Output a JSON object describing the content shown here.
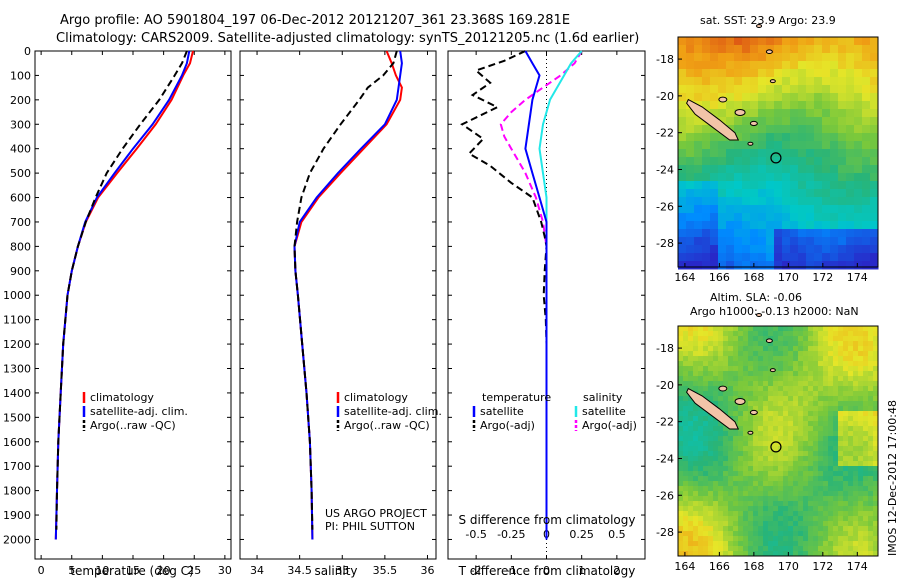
{
  "header": {
    "line1": "Argo profile: AO 5901804_197 06-Dec-2012 20121207_361 23.368S 169.281E",
    "line2": "Climatology: CARS2009. Satellite-adjusted climatology: synTS_20121205.nc (1.6d earlier)"
  },
  "colors": {
    "climatology": "#ff0000",
    "satellite": "#0000ff",
    "argo": "#000000",
    "sal_satellite": "#22e8e8",
    "sal_argo": "#ff00ff"
  },
  "chart_data": [
    {
      "type": "line",
      "name": "temperature-panel",
      "xlabel": "temperature (deg C)",
      "ylabel": "",
      "xlim": [
        -1,
        31
      ],
      "ylim": [
        0,
        2080
      ],
      "x_ticks": [
        0,
        5,
        10,
        15,
        20,
        25,
        30
      ],
      "y_ticks": [
        0,
        100,
        200,
        300,
        400,
        500,
        600,
        700,
        800,
        900,
        1000,
        1100,
        1200,
        1300,
        1400,
        1500,
        1600,
        1700,
        1800,
        1900,
        2000
      ],
      "y_inverted": true,
      "legend": [
        "climatology",
        "satellite-adj. clim.",
        "Argo(..raw -QC)"
      ],
      "legend_position": "bottom-right",
      "series": [
        {
          "name": "climatology",
          "depth": [
            0,
            50,
            100,
            200,
            300,
            400,
            500,
            600,
            700,
            800,
            900,
            1000,
            1200,
            1400,
            1600,
            1800,
            2000
          ],
          "values": [
            24.8,
            24.3,
            23.2,
            21.3,
            18.7,
            15.6,
            12.4,
            9.3,
            7.3,
            6.0,
            5.0,
            4.3,
            3.6,
            3.2,
            2.8,
            2.6,
            2.4
          ]
        },
        {
          "name": "satellite-adj. clim.",
          "depth": [
            0,
            50,
            100,
            200,
            300,
            400,
            500,
            600,
            700,
            800,
            900,
            1000,
            1200,
            1400,
            1600,
            1800,
            2000
          ],
          "values": [
            24.2,
            23.8,
            23.0,
            20.9,
            18.2,
            15.0,
            12.0,
            9.1,
            7.2,
            6.0,
            5.0,
            4.3,
            3.6,
            3.2,
            2.8,
            2.6,
            2.4
          ]
        },
        {
          "name": "Argo(..raw -QC)",
          "depth": [
            0,
            50,
            100,
            200,
            300,
            400,
            500,
            600,
            700,
            800,
            900,
            1000,
            1200,
            1400,
            1600,
            1800,
            1960
          ],
          "values": [
            23.8,
            23.0,
            21.8,
            19.3,
            16.2,
            13.3,
            10.7,
            8.9,
            7.3,
            6.0,
            5.0,
            4.3,
            3.6,
            3.2,
            2.8,
            2.6,
            2.5
          ]
        }
      ]
    },
    {
      "type": "line",
      "name": "salinity-panel",
      "xlabel": "salinity",
      "ylabel": "",
      "xlim": [
        33.8,
        36.1
      ],
      "ylim": [
        0,
        2080
      ],
      "x_ticks": [
        34,
        34.5,
        35,
        35.5,
        36
      ],
      "y_inverted": true,
      "legend": [
        "climatology",
        "satellite-adj. clim.",
        "Argo(..raw -QC)"
      ],
      "legend_position": "bottom-right",
      "annotation": [
        "US ARGO PROJECT",
        "PI: PHIL SUTTON"
      ],
      "series": [
        {
          "name": "climatology",
          "depth": [
            0,
            50,
            100,
            150,
            200,
            300,
            400,
            500,
            600,
            700,
            800,
            900,
            1000,
            1200,
            1400,
            1600,
            1800,
            2000
          ],
          "values": [
            35.52,
            35.58,
            35.63,
            35.7,
            35.68,
            35.52,
            35.25,
            34.98,
            34.72,
            34.52,
            34.44,
            34.45,
            34.48,
            34.53,
            34.58,
            34.62,
            34.64,
            34.65
          ]
        },
        {
          "name": "satellite-adj. clim.",
          "depth": [
            0,
            50,
            100,
            150,
            200,
            300,
            400,
            500,
            600,
            700,
            800,
            900,
            1000,
            1200,
            1400,
            1600,
            1800,
            2000
          ],
          "values": [
            35.68,
            35.7,
            35.68,
            35.66,
            35.64,
            35.5,
            35.22,
            34.95,
            34.7,
            34.5,
            34.44,
            34.45,
            34.48,
            34.53,
            34.58,
            34.62,
            34.64,
            34.65
          ]
        },
        {
          "name": "Argo(..raw -QC)",
          "depth": [
            0,
            50,
            100,
            150,
            200,
            300,
            400,
            500,
            600,
            700,
            800,
            900,
            1000,
            1200,
            1400,
            1600,
            1800,
            1960
          ],
          "values": [
            35.64,
            35.6,
            35.48,
            35.3,
            35.2,
            34.98,
            34.78,
            34.62,
            34.52,
            34.47,
            34.44,
            34.45,
            34.48,
            34.53,
            34.58,
            34.62,
            34.64,
            34.65
          ]
        }
      ]
    },
    {
      "type": "line",
      "name": "difference-panel",
      "xlabel_top": "S difference from climatology",
      "xlabel": "T difference from climatology",
      "xlim": [
        -2.8,
        2.8
      ],
      "ylim": [
        0,
        2080
      ],
      "x_ticks": [
        -2,
        -1,
        0,
        1,
        2
      ],
      "x_ticks_top": [
        "-0.5",
        "-0.25",
        "0",
        "0.25",
        "0.5"
      ],
      "y_inverted": true,
      "legend_temperature": [
        "temperature",
        "satellite",
        "Argo(-adj)"
      ],
      "legend_salinity": [
        "salinity",
        "satellite",
        "Argo(-adj)"
      ],
      "series": [
        {
          "name": "T satellite",
          "depth": [
            0,
            50,
            100,
            200,
            300,
            400,
            500,
            600,
            700,
            800,
            1000,
            1500,
            2000
          ],
          "values": [
            -0.6,
            -0.4,
            -0.2,
            -0.4,
            -0.5,
            -0.6,
            -0.4,
            -0.2,
            0,
            0,
            0,
            0,
            0
          ]
        },
        {
          "name": "T Argo(-adj)",
          "depth": [
            0,
            40,
            80,
            130,
            180,
            230,
            300,
            360,
            420,
            470,
            540,
            600,
            700,
            760,
            800,
            900,
            1000,
            1100,
            1200,
            1400,
            1600,
            1800,
            1960
          ],
          "values": [
            -0.6,
            -1.2,
            -2.0,
            -1.6,
            -2.1,
            -1.4,
            -2.4,
            -1.8,
            -2.2,
            -1.6,
            -1.0,
            -0.4,
            -0.15,
            -0.05,
            0,
            -0.05,
            -0.08,
            -0.02,
            0,
            0,
            0,
            0,
            0
          ]
        },
        {
          "name": "S satellite",
          "depth": [
            0,
            50,
            100,
            200,
            300,
            400,
            500,
            600,
            700,
            800,
            1000,
            1500,
            2000
          ],
          "values": [
            1.0,
            0.7,
            0.5,
            0.1,
            -0.1,
            -0.2,
            -0.1,
            0,
            0,
            0,
            0,
            0,
            0
          ]
        },
        {
          "name": "S Argo(-adj)",
          "depth": [
            0,
            50,
            100,
            150,
            200,
            250,
            300,
            350,
            400,
            450,
            500,
            600,
            700,
            800,
            1000,
            1500,
            2000
          ],
          "values": [
            1.0,
            0.8,
            0.4,
            -0.1,
            -0.6,
            -1.0,
            -1.3,
            -1.2,
            -1.0,
            -0.8,
            -0.6,
            -0.3,
            -0.1,
            0,
            0,
            0,
            0
          ]
        }
      ]
    },
    {
      "type": "heatmap",
      "name": "sst-map",
      "title": "sat. SST: 23.9 Argo: 23.9",
      "x_ticks": [
        164,
        166,
        168,
        170,
        172,
        174
      ],
      "y_ticks": [
        -18,
        -20,
        -22,
        -24,
        -26,
        -28
      ],
      "xlim": [
        163.6,
        175.2
      ],
      "ylim": [
        -29.3,
        -16.8
      ],
      "marker": {
        "lon": 169.28,
        "lat": -23.37
      }
    },
    {
      "type": "heatmap",
      "name": "sla-map",
      "title_line1": "Altim. SLA: -0.06",
      "title_line2": "Argo h1000: -0.13 h2000: NaN",
      "x_ticks": [
        164,
        166,
        168,
        170,
        172,
        174
      ],
      "y_ticks": [
        -18,
        -20,
        -22,
        -24,
        -26,
        -28
      ],
      "xlim": [
        163.6,
        175.2
      ],
      "ylim": [
        -29.3,
        -16.8
      ],
      "marker": {
        "lon": 169.28,
        "lat": -23.37
      }
    }
  ],
  "footer": {
    "watermark": "IMOS 12-Dec-2012 17:00:48"
  }
}
